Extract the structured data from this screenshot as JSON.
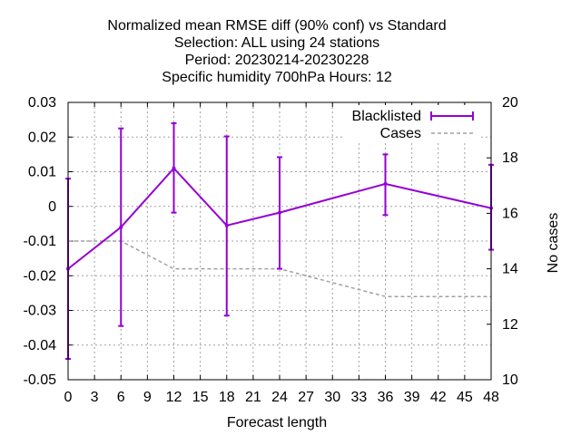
{
  "chart_data": {
    "type": "line",
    "title_lines": [
      "Normalized mean RMSE diff (90% conf) vs Standard",
      "Selection: ALL using    24 stations",
      "Period: 20230214-20230228",
      "Specific humidity 700hPa   Hours:  12"
    ],
    "xlabel": "Forecast length",
    "ylabel_right": "No cases",
    "xlim": [
      0,
      48
    ],
    "ylim": [
      -0.05,
      0.03
    ],
    "y2lim": [
      10,
      20
    ],
    "xticks": [
      0,
      3,
      6,
      9,
      12,
      15,
      18,
      21,
      24,
      27,
      30,
      33,
      36,
      39,
      42,
      45,
      48
    ],
    "yticks": [
      -0.05,
      -0.04,
      -0.03,
      -0.02,
      -0.01,
      0,
      0.01,
      0.02,
      0.03
    ],
    "ytick_labels": [
      "-0.05",
      "-0.04",
      "-0.03",
      "-0.02",
      "-0.01",
      "0",
      "0.01",
      "0.02",
      "0.03"
    ],
    "y2ticks": [
      10,
      12,
      14,
      16,
      18,
      20
    ],
    "grid": true,
    "legend_position": "top-right",
    "series": [
      {
        "name": "Blacklisted",
        "axis": "y",
        "style": "errorbars",
        "color": "#9400d3",
        "x": [
          0,
          6,
          12,
          18,
          24,
          36,
          48
        ],
        "y": [
          -0.018,
          -0.006,
          0.011,
          -0.0055,
          -0.0018,
          0.0065,
          -0.0005
        ],
        "ylow": [
          -0.044,
          -0.0345,
          -0.0018,
          -0.0315,
          -0.018,
          -0.0025,
          -0.0125
        ],
        "yhigh": [
          0.008,
          0.0225,
          0.024,
          0.0202,
          0.0142,
          0.015,
          0.012
        ]
      },
      {
        "name": "Cases",
        "axis": "y2",
        "style": "dashed",
        "color": "#a0a0a0",
        "x": [
          0,
          6,
          12,
          18,
          24,
          36,
          48
        ],
        "y": [
          15,
          15,
          14,
          14,
          14,
          13,
          13
        ]
      }
    ]
  }
}
